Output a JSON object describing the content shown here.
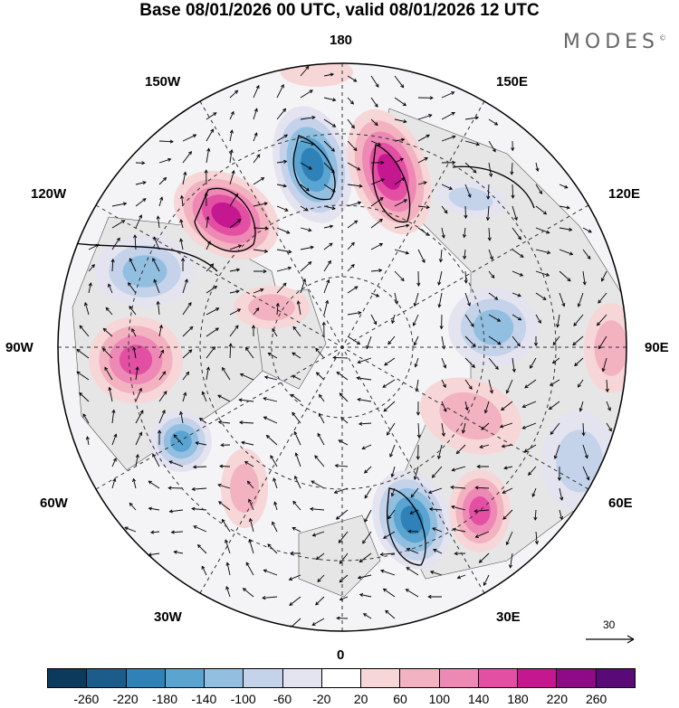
{
  "title": "Base 08/01/2026 00 UTC, valid 08/01/2026 12 UTC",
  "brand": "MODES",
  "brand_mark": "©",
  "longitude_labels": {
    "top": "180",
    "bottom": "0",
    "left": "90W",
    "right": "90E",
    "upper_left_1": "150W",
    "upper_left_2": "120W",
    "upper_right_1": "150E",
    "upper_right_2": "120E",
    "lower_left_1": "60W",
    "lower_left_2": "30W",
    "lower_right_1": "60E",
    "lower_right_2": "30E"
  },
  "reference_vector": {
    "value": "30"
  },
  "colorbar": {
    "ticks": [
      "-260",
      "-220",
      "-180",
      "-140",
      "-100",
      "-60",
      "-20",
      "20",
      "60",
      "100",
      "140",
      "180",
      "220",
      "260"
    ],
    "colors": [
      "#0c3a5c",
      "#1b5c8a",
      "#2e82b8",
      "#5aa4d2",
      "#92bfe0",
      "#c4d2ea",
      "#e4e3f0",
      "#ffffff",
      "#f7d6d8",
      "#f3b2c0",
      "#ee88b4",
      "#e24fa3",
      "#c5178f",
      "#8e0a86",
      "#5a0a78"
    ]
  },
  "colors": {
    "positive_anomaly": "#ee88b4",
    "negative_anomaly": "#2e82b8",
    "land": "#e6e6e6"
  }
}
